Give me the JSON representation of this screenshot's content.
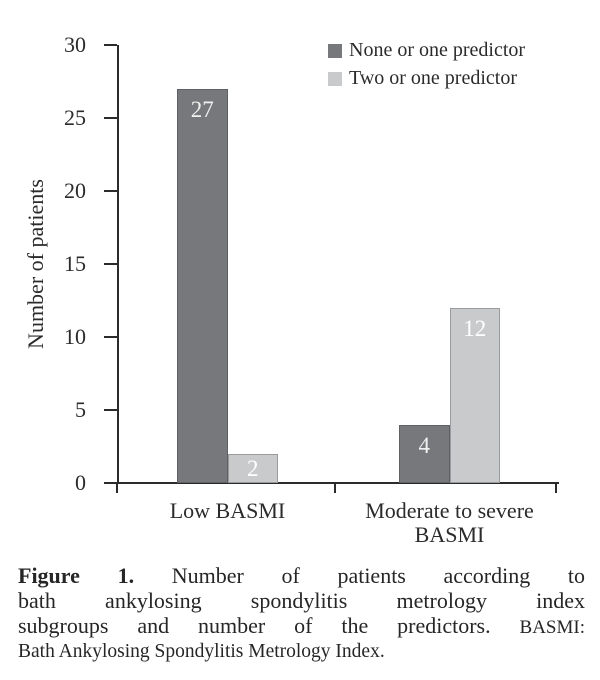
{
  "chart_data": {
    "type": "bar",
    "title": "",
    "categories": [
      "Low BASMI",
      "Moderate to severe BASMI"
    ],
    "series": [
      {
        "name": "None or one predictor",
        "values": [
          27,
          4
        ],
        "color": "#76787b",
        "border_color": "#5e6063",
        "value_label_color": "#f0f0f0"
      },
      {
        "name": "Two or one predictor",
        "values": [
          2,
          12
        ],
        "color": "#c9cacc",
        "border_color": "#9a9b9d",
        "value_label_color": "#ffffff"
      }
    ],
    "xlabel": "",
    "ylabel": "Number of patients",
    "ylim": [
      0,
      30
    ],
    "yticks": [
      0,
      5,
      10,
      15,
      20,
      25,
      30
    ],
    "grid": false,
    "legend_position": "top-right",
    "bar_value_labels": true
  },
  "caption": {
    "label": "Figure 1.",
    "line1_rest": "Number of patients according to",
    "line2": "bath ankylosing spondylitis metrology index",
    "line3_main": "subgroups and number of the predictors.",
    "line3_abbr": "BASMI:",
    "line4": "Bath Ankylosing Spondylitis Metrology Index."
  }
}
